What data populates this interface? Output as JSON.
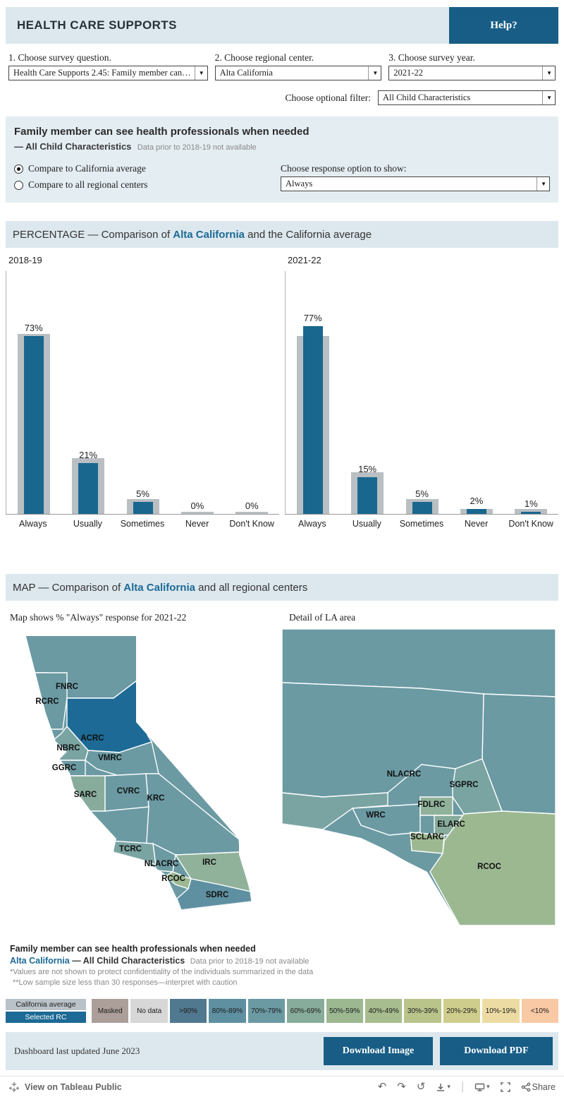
{
  "colors": {
    "band_blue": "#dde8ee",
    "banner_blue": "#e4edf2",
    "accent_blue": "#1c6a95",
    "bar_blue": "#19678f",
    "bar_gray": "#b9bfc2",
    "button_blue": "#175d86"
  },
  "header": {
    "title": "HEALTH CARE SUPPORTS",
    "help_label": "Help?"
  },
  "filters": {
    "question_label": "1. Choose survey question.",
    "question_value": "Health Care Supports 2.45: Family member can…",
    "center_label": "2. Choose regional center.",
    "center_value": "Alta California",
    "year_label": "3. Choose survey year.",
    "year_value": "2021-22",
    "optional_label": "Choose optional filter:",
    "optional_value": "All Child Characteristics"
  },
  "question_banner": {
    "title": "Family member can see health professionals when needed",
    "subtitle": "— All Child Characteristics",
    "note": "Data prior to 2018-19 not available"
  },
  "compare": {
    "radio_california": "Compare to California average",
    "radio_all_centers": "Compare to all regional centers",
    "selected": "Compare to California average",
    "response_label": "Choose response option to show:",
    "response_value": "Always"
  },
  "percentage_section": {
    "prefix": "PERCENTAGE — Comparison of ",
    "highlight": "Alta California",
    "suffix": " and the California average"
  },
  "chart_data": [
    {
      "type": "bar",
      "title": "2018-19",
      "categories": [
        "Always",
        "Usually",
        "Sometimes",
        "Never",
        "Don't Know"
      ],
      "series": [
        {
          "name": "California average",
          "values": [
            74,
            23,
            6,
            1,
            1
          ]
        },
        {
          "name": "Alta California",
          "values": [
            73,
            21,
            5,
            0,
            0
          ]
        }
      ],
      "labels": [
        "73%",
        "21%",
        "5%",
        "0%",
        "0%"
      ],
      "ylim": [
        0,
        100
      ]
    },
    {
      "type": "bar",
      "title": "2021-22",
      "categories": [
        "Always",
        "Usually",
        "Sometimes",
        "Never",
        "Don't Know"
      ],
      "series": [
        {
          "name": "California average",
          "values": [
            73,
            17,
            6,
            2,
            2
          ]
        },
        {
          "name": "Alta California",
          "values": [
            77,
            15,
            5,
            2,
            1
          ]
        }
      ],
      "labels": [
        "77%",
        "15%",
        "5%",
        "2%",
        "1%"
      ],
      "ylim": [
        0,
        100
      ]
    }
  ],
  "map_section": {
    "prefix": "MAP — Comparison of ",
    "highlight": "Alta California",
    "suffix": " and all regional centers",
    "left_caption": "Map shows % \"Always\" response for 2021-22",
    "right_caption": "Detail of LA area",
    "state_regions": [
      {
        "id": "FNRC",
        "label": "FNRC",
        "color": "#6b9aa3"
      },
      {
        "id": "RCRC",
        "label": "RCRC",
        "color": "#6b9aa3"
      },
      {
        "id": "ACRC",
        "label": "ACRC",
        "color": "#1c6a95"
      },
      {
        "id": "NBRC",
        "label": "NBRC",
        "color": "#79a4a2"
      },
      {
        "id": "VMRC",
        "label": "VMRC",
        "color": "#6b9aa3"
      },
      {
        "id": "GGRC",
        "label": "GGRC",
        "color": "#6b9aa3"
      },
      {
        "id": "SARC",
        "label": "SARC",
        "color": "#88ac9c"
      },
      {
        "id": "CVRC",
        "label": "CVRC",
        "color": "#6b9aa3"
      },
      {
        "id": "KRC",
        "label": "KRC",
        "color": "#6b9aa3"
      },
      {
        "id": "TCRC",
        "label": "TCRC",
        "color": "#79a4a2"
      },
      {
        "id": "NLACRC",
        "label": "NLACRC",
        "color": "#6b9aa3"
      },
      {
        "id": "RCOC",
        "label": "RCOC",
        "color": "#9cb891"
      },
      {
        "id": "IRC",
        "label": "IRC",
        "color": "#90b29a"
      },
      {
        "id": "SDRC",
        "label": "SDRC",
        "color": "#5e90a1"
      }
    ],
    "la_regions": [
      {
        "id": "NORTH",
        "label": "",
        "color": "#6b9aa3"
      },
      {
        "id": "EAST",
        "label": "",
        "color": "#6b9aa3"
      },
      {
        "id": "NLACRC",
        "label": "NLACRC",
        "color": "#6b9aa3"
      },
      {
        "id": "VENTURA",
        "label": "",
        "color": "#79a4a2"
      },
      {
        "id": "WRC",
        "label": "WRC",
        "color": "#6b9aa3"
      },
      {
        "id": "FDLRC",
        "label": "FDLRC",
        "color": "#90b29a"
      },
      {
        "id": "SGPRC",
        "label": "SGPRC",
        "color": "#79a4a2"
      },
      {
        "id": "ELARC",
        "label": "ELARC",
        "color": "#88ac9c"
      },
      {
        "id": "SCLARC",
        "label": "SCLARC",
        "color": "#9cb891"
      },
      {
        "id": "RCOC",
        "label": "RCOC",
        "color": "#9cb891"
      }
    ]
  },
  "footnotes": {
    "line1": "Family member can see health professionals when needed",
    "center_highlight": "Alta California",
    "center_rest": "— All Child Characteristics",
    "note": "Data prior to 2018-19 not available",
    "confidentiality": "*Values are not shown to protect confidentiality of the individuals summarized in the data",
    "low_sample": "**Low sample size less than 30 responses—interpret with caution"
  },
  "legend": {
    "bar_legend": [
      {
        "label": "California average",
        "color": "#b9c2c8",
        "text": "#222222"
      },
      {
        "label": "Selected RC",
        "color": "#1c6a95",
        "text": "#ffffff"
      }
    ],
    "scale": [
      {
        "label": "Masked",
        "color": "#ac9f99"
      },
      {
        "label": "No data",
        "color": "#d7d7d7"
      },
      {
        "label": ">90%",
        "color": "#50798f"
      },
      {
        "label": "80%-89%",
        "color": "#5e90a1"
      },
      {
        "label": "70%-79%",
        "color": "#6b9aa3"
      },
      {
        "label": "60%-69%",
        "color": "#88ac9c"
      },
      {
        "label": "50%-59%",
        "color": "#9cb891"
      },
      {
        "label": "40%-49%",
        "color": "#a8bd8f"
      },
      {
        "label": "30%-39%",
        "color": "#b9c48b"
      },
      {
        "label": "20%-29%",
        "color": "#cfcd8c"
      },
      {
        "label": "10%-19%",
        "color": "#ecdca4"
      },
      {
        "label": "<10%",
        "color": "#f8c9a4"
      }
    ]
  },
  "footer": {
    "updated": "Dashboard last updated June 2023",
    "download_image": "Download Image",
    "download_pdf": "Download PDF"
  },
  "tableau_bar": {
    "view_label": "View on Tableau Public",
    "share_label": "Share"
  }
}
